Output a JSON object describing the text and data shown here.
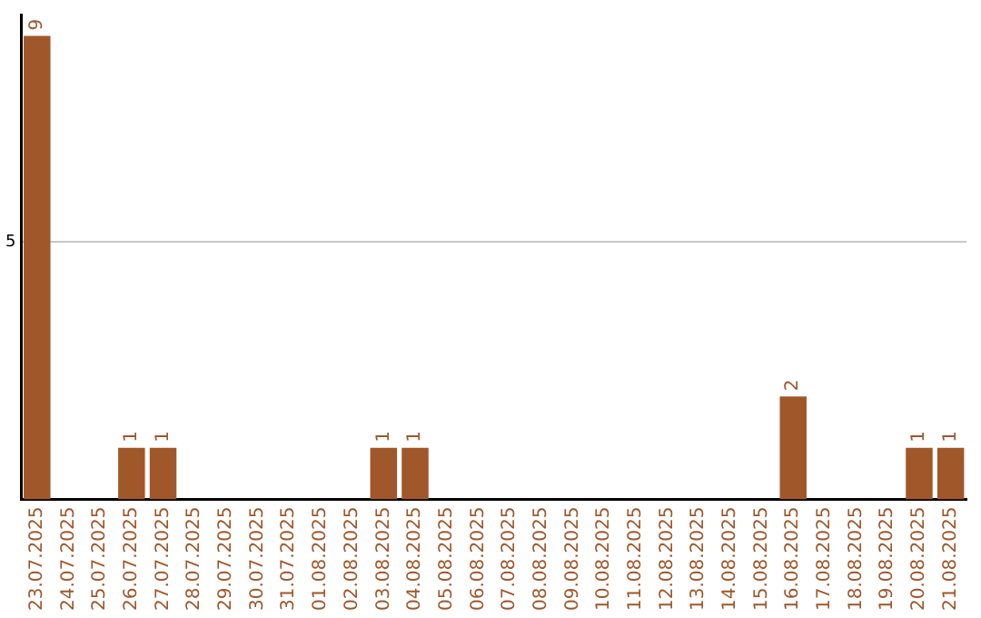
{
  "chart_data": {
    "type": "bar",
    "categories": [
      "23.07.2025",
      "24.07.2025",
      "25.07.2025",
      "26.07.2025",
      "27.07.2025",
      "28.07.2025",
      "29.07.2025",
      "30.07.2025",
      "31.07.2025",
      "01.08.2025",
      "02.08.2025",
      "03.08.2025",
      "04.08.2025",
      "05.08.2025",
      "06.08.2025",
      "07.08.2025",
      "08.08.2025",
      "09.08.2025",
      "10.08.2025",
      "11.08.2025",
      "12.08.2025",
      "13.08.2025",
      "14.08.2025",
      "15.08.2025",
      "16.08.2025",
      "17.08.2025",
      "18.08.2025",
      "19.08.2025",
      "20.08.2025",
      "21.08.2025"
    ],
    "values": [
      9,
      0,
      0,
      1,
      1,
      0,
      0,
      0,
      0,
      0,
      0,
      1,
      1,
      0,
      0,
      0,
      0,
      0,
      0,
      0,
      0,
      0,
      0,
      0,
      2,
      0,
      0,
      0,
      1,
      1
    ],
    "value_labels": [
      "9",
      null,
      null,
      "1",
      "1",
      null,
      null,
      null,
      null,
      null,
      null,
      "1",
      "1",
      null,
      null,
      null,
      null,
      null,
      null,
      null,
      null,
      null,
      null,
      null,
      "2",
      null,
      null,
      null,
      "1",
      "1"
    ],
    "color": "#a0572a",
    "ylim": [
      0,
      9.4
    ],
    "yticks": [
      5
    ],
    "grid": "y",
    "legend": false
  }
}
